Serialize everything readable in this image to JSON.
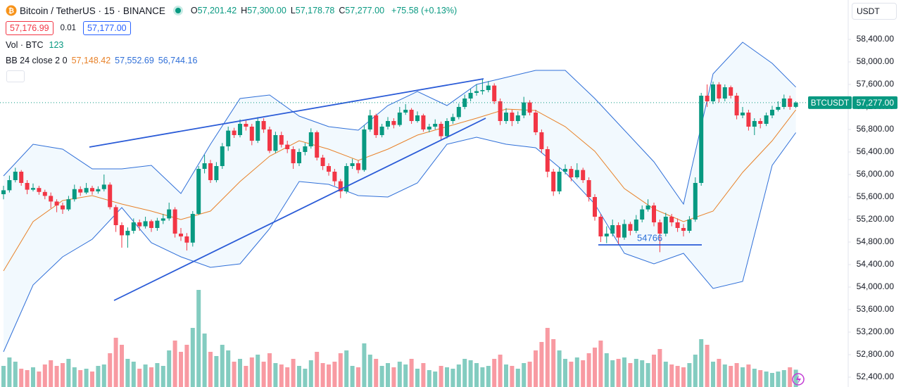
{
  "header": {
    "symbol": "Bitcoin / TetherUS · 15 · BINANCE",
    "ohlc": [
      {
        "label": "O",
        "value": "57,201.42"
      },
      {
        "label": "H",
        "value": "57,300.00"
      },
      {
        "label": "L",
        "value": "57,178.78"
      },
      {
        "label": "C",
        "value": "57,277.00"
      }
    ],
    "change": "+75.58 (+0.13%)",
    "bid": "57,176.99",
    "spread": "0.01",
    "ask": "57,177.00",
    "vol_label": "Vol · BTC",
    "vol_value": "123",
    "bb_label": "BB 24 close 2 0",
    "bb_values": [
      "57,148.42",
      "57,552.69",
      "56,744.16"
    ]
  },
  "currency": "USDT",
  "price_tag_symbol": "BTCUSDT",
  "annotation": "54766",
  "chart_data": {
    "type": "candlestick",
    "up_color": "#089981",
    "down_color": "#f23645",
    "ylim": [
      52225,
      59100
    ],
    "yticks": [
      {
        "value": 52400,
        "label": "52,400.00"
      },
      {
        "value": 52800,
        "label": "52,800.00"
      },
      {
        "value": 53200,
        "label": "53,200.00"
      },
      {
        "value": 53600,
        "label": "53,600.00"
      },
      {
        "value": 54000,
        "label": "54,000.00"
      },
      {
        "value": 54400,
        "label": "54,400.00"
      },
      {
        "value": 54800,
        "label": "54,800.00"
      },
      {
        "value": 55200,
        "label": "55,200.00"
      },
      {
        "value": 55600,
        "label": "55,600.00"
      },
      {
        "value": 56000,
        "label": "56,000.00"
      },
      {
        "value": 56400,
        "label": "56,400.00"
      },
      {
        "value": 56800,
        "label": "56,800.00"
      },
      {
        "value": 57200,
        "label": "57,200.00"
      },
      {
        "value": 57600,
        "label": "57,600.00"
      },
      {
        "value": 58000,
        "label": "58,000.00"
      },
      {
        "value": 58400,
        "label": "58,400.00"
      }
    ],
    "last": {
      "value": 57277,
      "label": "57,277.00"
    },
    "vlim": [
      0,
      2750
    ],
    "ohlc": [
      [
        55650,
        55800,
        55560,
        55720
      ],
      [
        55720,
        55980,
        55680,
        55900
      ],
      [
        55900,
        56120,
        55860,
        56050
      ],
      [
        56050,
        56080,
        55800,
        55850
      ],
      [
        55850,
        55900,
        55650,
        55730
      ],
      [
        55730,
        55840,
        55700,
        55760
      ],
      [
        55760,
        55800,
        55640,
        55690
      ],
      [
        55690,
        55730,
        55560,
        55620
      ],
      [
        55620,
        55680,
        55400,
        55520
      ],
      [
        55520,
        55560,
        55330,
        55450
      ],
      [
        55450,
        55500,
        55300,
        55380
      ],
      [
        55380,
        55620,
        55350,
        55560
      ],
      [
        55560,
        55820,
        55520,
        55740
      ],
      [
        55740,
        55790,
        55620,
        55680
      ],
      [
        55680,
        55850,
        55650,
        55760
      ],
      [
        55760,
        55800,
        55640,
        55700
      ],
      [
        55700,
        55790,
        55660,
        55740
      ],
      [
        55740,
        56000,
        55700,
        55820
      ],
      [
        55820,
        55860,
        55380,
        55420
      ],
      [
        55420,
        55460,
        54980,
        55100
      ],
      [
        55100,
        55150,
        54700,
        54920
      ],
      [
        54920,
        55060,
        54700,
        55000
      ],
      [
        55000,
        55220,
        54950,
        55150
      ],
      [
        55150,
        55200,
        55000,
        55080
      ],
      [
        55080,
        55250,
        55040,
        55170
      ],
      [
        55170,
        55200,
        54980,
        55050
      ],
      [
        55050,
        55230,
        55000,
        55180
      ],
      [
        55180,
        55300,
        55120,
        55220
      ],
      [
        55220,
        55500,
        55180,
        55380
      ],
      [
        55380,
        55420,
        54880,
        54950
      ],
      [
        54950,
        55050,
        54820,
        54900
      ],
      [
        54900,
        54960,
        54650,
        54790
      ],
      [
        54790,
        55350,
        54720,
        55300
      ],
      [
        55300,
        56150,
        55280,
        56100
      ],
      [
        56100,
        56350,
        56020,
        56200
      ],
      [
        56200,
        56260,
        55850,
        55900
      ],
      [
        55900,
        56220,
        55860,
        56150
      ],
      [
        56150,
        56560,
        56100,
        56500
      ],
      [
        56500,
        56850,
        56420,
        56780
      ],
      [
        56780,
        56830,
        56650,
        56700
      ],
      [
        56700,
        56980,
        56660,
        56900
      ],
      [
        56900,
        56960,
        56780,
        56850
      ],
      [
        56850,
        56900,
        56520,
        56600
      ],
      [
        56600,
        57020,
        56560,
        56950
      ],
      [
        56950,
        57000,
        56740,
        56800
      ],
      [
        56800,
        56850,
        56380,
        56420
      ],
      [
        56420,
        56760,
        56380,
        56700
      ],
      [
        56700,
        56760,
        56480,
        56530
      ],
      [
        56530,
        56600,
        56380,
        56450
      ],
      [
        56450,
        56500,
        56100,
        56200
      ],
      [
        56200,
        56460,
        56150,
        56400
      ],
      [
        56400,
        56560,
        56340,
        56500
      ],
      [
        56500,
        56820,
        56460,
        56750
      ],
      [
        56750,
        56780,
        56250,
        56300
      ],
      [
        56300,
        56350,
        56080,
        56150
      ],
      [
        56150,
        56200,
        55980,
        56050
      ],
      [
        56050,
        56100,
        55800,
        55880
      ],
      [
        55880,
        55920,
        55580,
        55700
      ],
      [
        55700,
        56200,
        55660,
        56150
      ],
      [
        56150,
        56280,
        56100,
        56200
      ],
      [
        56200,
        56250,
        56020,
        56080
      ],
      [
        56080,
        56880,
        56050,
        56800
      ],
      [
        56800,
        57150,
        56760,
        57050
      ],
      [
        57050,
        57080,
        56650,
        56700
      ],
      [
        56700,
        56900,
        56660,
        56850
      ],
      [
        56850,
        57020,
        56800,
        56950
      ],
      [
        56950,
        57000,
        56820,
        56880
      ],
      [
        56880,
        57200,
        56850,
        57100
      ],
      [
        57100,
        57250,
        57060,
        57150
      ],
      [
        57150,
        57180,
        56900,
        56950
      ],
      [
        56950,
        57120,
        56920,
        57050
      ],
      [
        57050,
        57080,
        56760,
        56800
      ],
      [
        56800,
        56900,
        56750,
        56850
      ],
      [
        56850,
        56980,
        56800,
        56900
      ],
      [
        56900,
        56940,
        56620,
        56680
      ],
      [
        56680,
        57000,
        56640,
        56950
      ],
      [
        56950,
        57080,
        56900,
        57020
      ],
      [
        57020,
        57260,
        56980,
        57200
      ],
      [
        57200,
        57420,
        57160,
        57350
      ],
      [
        57350,
        57520,
        57300,
        57450
      ],
      [
        57450,
        57600,
        57400,
        57480
      ],
      [
        57480,
        57700,
        57420,
        57500
      ],
      [
        57500,
        57660,
        57460,
        57580
      ],
      [
        57580,
        57620,
        57250,
        57300
      ],
      [
        57300,
        57350,
        56880,
        56950
      ],
      [
        56950,
        57180,
        56900,
        57100
      ],
      [
        57100,
        57150,
        56860,
        56950
      ],
      [
        56950,
        57120,
        56900,
        57050
      ],
      [
        57050,
        57380,
        57000,
        57280
      ],
      [
        57280,
        57320,
        57050,
        57100
      ],
      [
        57100,
        57150,
        56700,
        56750
      ],
      [
        56750,
        56800,
        56380,
        56450
      ],
      [
        56450,
        56500,
        55950,
        56050
      ],
      [
        56050,
        56100,
        55620,
        55700
      ],
      [
        55700,
        56120,
        55650,
        56050
      ],
      [
        56050,
        56180,
        56000,
        56100
      ],
      [
        56100,
        56150,
        55880,
        55950
      ],
      [
        55950,
        56200,
        55920,
        56080
      ],
      [
        56080,
        56120,
        55850,
        55900
      ],
      [
        55900,
        55950,
        55520,
        55600
      ],
      [
        55600,
        55650,
        55180,
        55250
      ],
      [
        55250,
        55300,
        54800,
        54900
      ],
      [
        54900,
        55080,
        54780,
        54950
      ],
      [
        54950,
        55200,
        54900,
        55100
      ],
      [
        55100,
        55150,
        54760,
        54880
      ],
      [
        54880,
        55200,
        54840,
        55120
      ],
      [
        55120,
        55160,
        54920,
        55000
      ],
      [
        55000,
        55280,
        54960,
        55200
      ],
      [
        55200,
        55450,
        55150,
        55380
      ],
      [
        55380,
        55560,
        55340,
        55450
      ],
      [
        55450,
        55500,
        55080,
        55150
      ],
      [
        55150,
        55200,
        54620,
        54950
      ],
      [
        54950,
        55320,
        54900,
        55250
      ],
      [
        55250,
        55300,
        55080,
        55150
      ],
      [
        55150,
        55220,
        54980,
        55050
      ],
      [
        55050,
        55120,
        54900,
        55000
      ],
      [
        55000,
        55260,
        54960,
        55200
      ],
      [
        55200,
        55950,
        55160,
        55850
      ],
      [
        55850,
        57450,
        55800,
        57400
      ],
      [
        57400,
        57600,
        57200,
        57300
      ],
      [
        57300,
        57650,
        57250,
        57600
      ],
      [
        57600,
        57640,
        57280,
        57350
      ],
      [
        57350,
        57600,
        57300,
        57550
      ],
      [
        57550,
        57580,
        57350,
        57400
      ],
      [
        57400,
        57450,
        56980,
        57050
      ],
      [
        57050,
        57200,
        57000,
        57100
      ],
      [
        57100,
        57150,
        56780,
        56850
      ],
      [
        56850,
        57000,
        56700,
        56950
      ],
      [
        56950,
        57000,
        56820,
        56900
      ],
      [
        56900,
        57100,
        56860,
        57050
      ],
      [
        57050,
        57220,
        57000,
        57150
      ],
      [
        57150,
        57300,
        57120,
        57200
      ],
      [
        57200,
        57420,
        57160,
        57350
      ],
      [
        57350,
        57400,
        57150,
        57201.42
      ],
      [
        57201.42,
        57300,
        57178.78,
        57277
      ]
    ],
    "volume": [
      150,
      210,
      180,
      130,
      120,
      140,
      110,
      160,
      190,
      150,
      170,
      200,
      140,
      120,
      130,
      110,
      150,
      160,
      240,
      350,
      300,
      200,
      180,
      130,
      160,
      140,
      170,
      150,
      260,
      330,
      250,
      300,
      420,
      690,
      380,
      250,
      220,
      300,
      260,
      180,
      200,
      150,
      210,
      230,
      180,
      240,
      170,
      160,
      140,
      200,
      150,
      130,
      190,
      250,
      170,
      160,
      180,
      240,
      260,
      150,
      140,
      310,
      230,
      200,
      150,
      170,
      140,
      180,
      160,
      200,
      130,
      170,
      120,
      110,
      150,
      140,
      130,
      160,
      200,
      190,
      170,
      140,
      150,
      200,
      230,
      160,
      150,
      130,
      170,
      180,
      260,
      320,
      420,
      340,
      260,
      200,
      180,
      210,
      190,
      240,
      280,
      330,
      240,
      190,
      200,
      210,
      170,
      200,
      190,
      170,
      230,
      270,
      180,
      160,
      150,
      140,
      170,
      230,
      340,
      300,
      180,
      200,
      160,
      150,
      170,
      140,
      160,
      130,
      120,
      110,
      100,
      110,
      120,
      140,
      123
    ],
    "bb": {
      "x": [
        0,
        5,
        10,
        15,
        20,
        25,
        30,
        35,
        40,
        45,
        50,
        55,
        60,
        65,
        70,
        75,
        80,
        85,
        90,
        95,
        100,
        105,
        110,
        115,
        120,
        125,
        130,
        134
      ],
      "upper": [
        55975,
        56537,
        56450,
        56100,
        56100,
        56162,
        55662,
        56537,
        57350,
        57412,
        57037,
        56850,
        56787,
        57225,
        57475,
        57225,
        57600,
        57725,
        57850,
        57850,
        57350,
        56787,
        56225,
        55475,
        57787,
        58350,
        57975,
        57552.69
      ],
      "middle": [
        54287,
        55162,
        55537,
        55625,
        55475,
        55350,
        55200,
        55350,
        55875,
        56325,
        56600,
        56450,
        56250,
        56450,
        56700,
        56850,
        57000,
        57162,
        57137,
        56850,
        56412,
        55750,
        55387,
        55162,
        55350,
        56037,
        56600,
        57148.42
      ],
      "lower": [
        52850,
        54037,
        54537,
        54850,
        55412,
        54787,
        54537,
        54350,
        54412,
        55037,
        55875,
        55825,
        55625,
        55600,
        55850,
        56537,
        56662,
        56537,
        56475,
        56037,
        55475,
        54600,
        54412,
        54600,
        53975,
        54100,
        56162,
        56744.16
      ],
      "band_color": "#2f6fd8",
      "basis_color": "#e8822a",
      "fill_color": "#2196f3"
    }
  }
}
